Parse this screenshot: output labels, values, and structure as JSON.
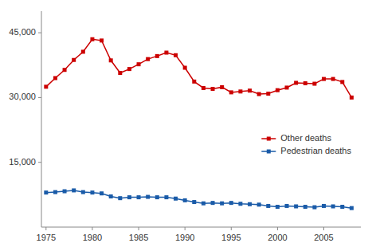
{
  "chart_data": {
    "type": "line",
    "x": [
      1975,
      1976,
      1977,
      1978,
      1979,
      1980,
      1981,
      1982,
      1983,
      1984,
      1985,
      1986,
      1987,
      1988,
      1989,
      1990,
      1991,
      1992,
      1993,
      1994,
      1995,
      1996,
      1997,
      1998,
      1999,
      2000,
      2001,
      2002,
      2003,
      2004,
      2005,
      2006,
      2007,
      2008
    ],
    "series": [
      {
        "name": "Other deaths",
        "color": "#cc0000",
        "marker": "square",
        "values": [
          32500,
          34500,
          36400,
          38700,
          40600,
          43500,
          43200,
          38600,
          35700,
          36600,
          37700,
          38900,
          39600,
          40400,
          39800,
          36900,
          33700,
          32200,
          32000,
          32400,
          31200,
          31400,
          31600,
          30800,
          30900,
          31700,
          32300,
          33400,
          33300,
          33200,
          34300,
          34300,
          33600,
          30000
        ]
      },
      {
        "name": "Pedestrian deaths",
        "color": "#1a5ba8",
        "marker": "square",
        "values": [
          8000,
          8100,
          8300,
          8500,
          8100,
          8000,
          7800,
          7100,
          6700,
          6900,
          6900,
          7000,
          6900,
          6900,
          6600,
          6200,
          5800,
          5500,
          5600,
          5500,
          5600,
          5400,
          5300,
          5200,
          4900,
          4700,
          4900,
          4800,
          4700,
          4600,
          4900,
          4800,
          4700,
          4400
        ]
      }
    ],
    "xlim": [
      1974.5,
      2009
    ],
    "xticks": [
      1975,
      1980,
      1985,
      1990,
      1995,
      2000,
      2005
    ],
    "ylim": [
      0,
      50000
    ],
    "yticks": [
      {
        "value": 15000,
        "label": "15,000"
      },
      {
        "value": 30000,
        "label": "30,000"
      },
      {
        "value": 45000,
        "label": "45,000"
      }
    ],
    "grid": false,
    "legend": "right"
  }
}
